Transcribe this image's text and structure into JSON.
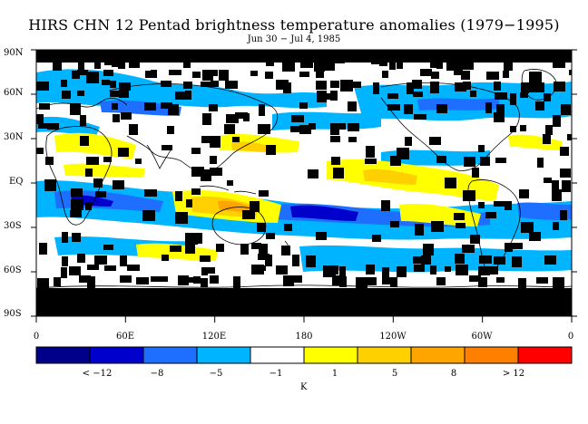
{
  "title": "HIRS CHN 12 Pentad brightness temperature anomalies (1979−1995)",
  "subtitle": "Jun 30 − Jul 4, 1985",
  "y_axis_labels": [
    "90N",
    "60N",
    "30N",
    "EQ",
    "30S",
    "60S",
    "90S"
  ],
  "x_axis_labels": [
    "0",
    "60E",
    "120E",
    "180",
    "120W",
    "60W",
    "0"
  ],
  "colorbar": {
    "colors": [
      "#00008b",
      "#0000cd",
      "#1e6fff",
      "#00b4ff",
      "#ffffff",
      "#ffff00",
      "#ffd000",
      "#ffa500",
      "#ff7f00",
      "#ff0000"
    ],
    "labels": [
      "< −12",
      "−8",
      "−5",
      "−1",
      "1",
      "5",
      "8",
      "> 12"
    ],
    "unit": "K"
  },
  "map_layers": {
    "missing_data_color": "#000000",
    "coastline_color": "#000000"
  }
}
